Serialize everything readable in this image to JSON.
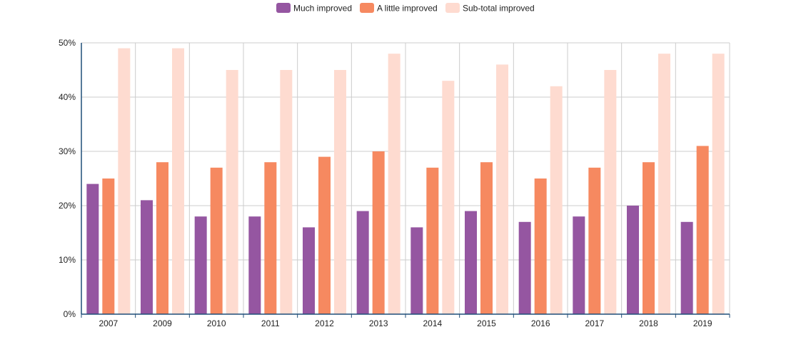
{
  "chart_data": {
    "type": "bar",
    "categories": [
      "2007",
      "2009",
      "2010",
      "2011",
      "2012",
      "2013",
      "2014",
      "2015",
      "2016",
      "2017",
      "2018",
      "2019"
    ],
    "series": [
      {
        "name": "Much improved",
        "color": "#9556a1",
        "values": [
          24,
          21,
          18,
          18,
          16,
          19,
          16,
          19,
          17,
          18,
          20,
          17
        ]
      },
      {
        "name": "A little improved",
        "color": "#f68960",
        "values": [
          25,
          28,
          27,
          28,
          29,
          30,
          27,
          28,
          25,
          27,
          28,
          31
        ]
      },
      {
        "name": "Sub-total improved",
        "color": "#fedbd0",
        "values": [
          49,
          49,
          45,
          45,
          45,
          48,
          43,
          46,
          42,
          45,
          48,
          48
        ]
      }
    ],
    "y_ticks": [
      "0%",
      "10%",
      "20%",
      "30%",
      "40%",
      "50%"
    ],
    "ylim": [
      0,
      50
    ],
    "legend_position": "top-center",
    "grid": true
  }
}
